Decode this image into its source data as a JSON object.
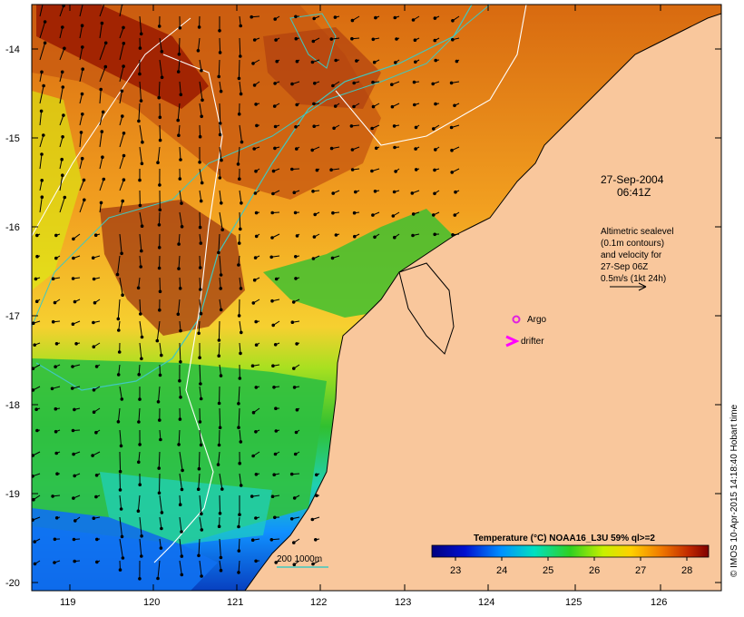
{
  "map": {
    "datetime_line1": "27-Sep-2004",
    "datetime_line2": "06:41Z",
    "altimetry_note": [
      "Altimetric sealevel",
      "(0.1m contours)",
      "and velocity for",
      "27-Sep 06Z",
      "0.5m/s (1kt 24h)"
    ],
    "legend_argo": "Argo",
    "legend_drifter": "drifter",
    "depth_legend": "200  1000m",
    "colorbar_title": "Temperature (°C) NOAA16_L3U 59% ql>=2",
    "colorbar_ticks": [
      "23",
      "24",
      "25",
      "26",
      "27",
      "28"
    ],
    "credit": "© IMOS 10-Apr-2015 14:18:40 Hobart time",
    "lat_ticks": [
      "-14",
      "-15",
      "-16",
      "-17",
      "-18",
      "-19",
      "-20"
    ],
    "lon_ticks": [
      "119",
      "120",
      "121",
      "122",
      "123",
      "124",
      "125",
      "126"
    ],
    "colors": {
      "land": "#f9c79c",
      "argo": "#e020e0",
      "drifter": "#ff00ff",
      "isobath": "#40c8c0"
    }
  }
}
